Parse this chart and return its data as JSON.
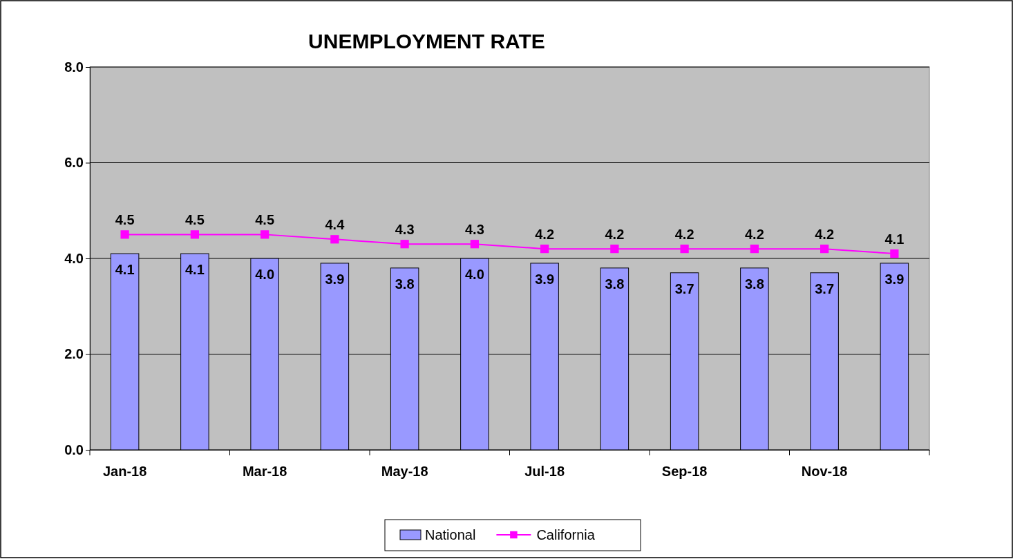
{
  "chart_data": {
    "type": "bar",
    "title": "UNEMPLOYMENT RATE",
    "categories": [
      "Jan-18",
      null,
      "Mar-18",
      null,
      "May-18",
      null,
      "Jul-18",
      null,
      "Sep-18",
      null,
      "Nov-18",
      null
    ],
    "series": [
      {
        "name": "National",
        "color": "#9999ff",
        "values": [
          4.1,
          4.1,
          4.0,
          3.9,
          3.8,
          4.0,
          3.9,
          3.8,
          3.7,
          3.8,
          3.7,
          3.9
        ],
        "value_labels": [
          "4.1",
          "4.1",
          "4.0",
          "3.9",
          "3.8",
          "4.0",
          "3.9",
          "3.8",
          "3.7",
          "3.8",
          "3.7",
          "3.9"
        ]
      },
      {
        "name": "California",
        "type": "line",
        "color": "#ff00ff",
        "marker": "square",
        "values": [
          4.5,
          4.5,
          4.5,
          4.4,
          4.3,
          4.3,
          4.2,
          4.2,
          4.2,
          4.2,
          4.2,
          4.1
        ],
        "value_labels": [
          "4.5",
          "4.5",
          "4.5",
          "4.4",
          "4.3",
          "4.3",
          "4.2",
          "4.2",
          "4.2",
          "4.2",
          "4.2",
          "4.1"
        ]
      }
    ],
    "ylim": [
      0,
      8
    ],
    "yticks": [
      {
        "value": 0,
        "label": "0.0"
      },
      {
        "value": 2,
        "label": "2.0"
      },
      {
        "value": 4,
        "label": "4.0"
      },
      {
        "value": 6,
        "label": "6.0"
      },
      {
        "value": 8,
        "label": "8.0"
      }
    ],
    "grid": "y",
    "legend": "bottom"
  }
}
